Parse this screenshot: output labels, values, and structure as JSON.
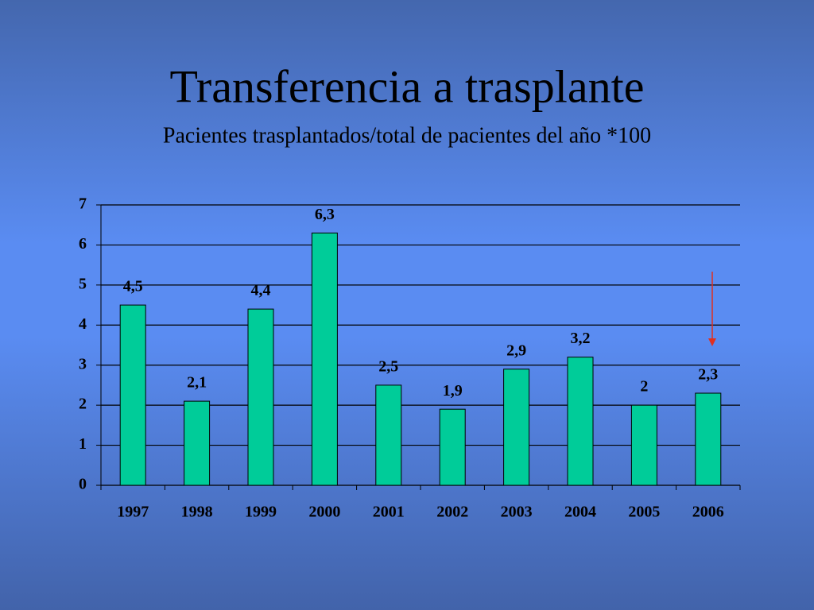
{
  "chart_data": {
    "type": "bar",
    "title": "Transferencia a trasplante",
    "subtitle": "Pacientes trasplantados/total de pacientes del año *100",
    "categories": [
      "1997",
      "1998",
      "1999",
      "2000",
      "2001",
      "2002",
      "2003",
      "2004",
      "2005",
      "2006"
    ],
    "values": [
      4.5,
      2.1,
      4.4,
      6.3,
      2.5,
      1.9,
      2.9,
      3.2,
      2,
      2.3
    ],
    "value_labels": [
      "4,5",
      "2,1",
      "4,4",
      "6,3",
      "2,5",
      "1,9",
      "2,9",
      "3,2",
      "2",
      "2,3"
    ],
    "color": "#00cc99",
    "ylim": [
      0,
      7
    ],
    "yticks": [
      0,
      1,
      2,
      3,
      4,
      5,
      6,
      7
    ],
    "grid": true
  }
}
